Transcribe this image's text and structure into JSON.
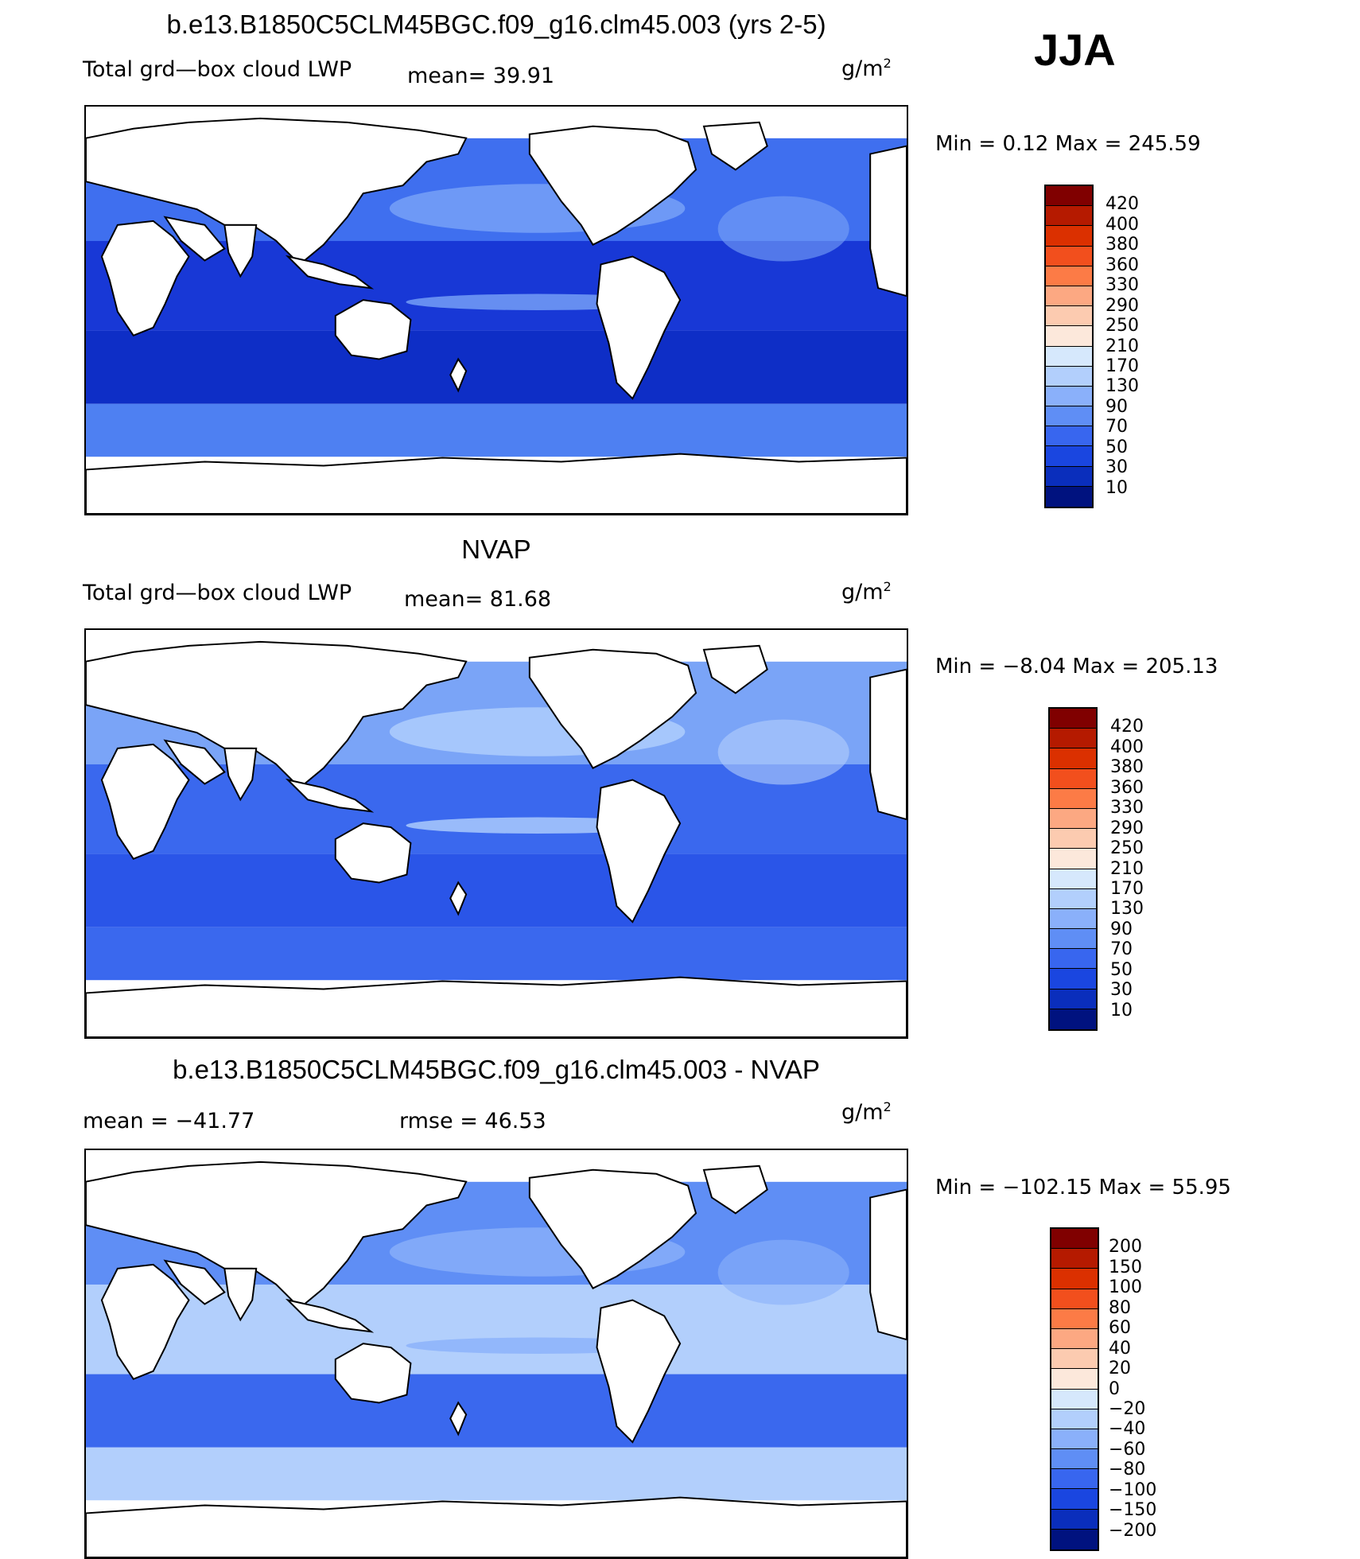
{
  "season": "JJA",
  "panels": [
    {
      "title": "b.e13.B1850C5CLM45BGC.f09_g16.clm45.003 (yrs 2-5)",
      "left_label": "Total grd—box cloud LWP",
      "mean_text": "mean=   39.91",
      "units_base": "g/m",
      "units_exp": "2",
      "stats": "Min =     0.12  Max  =  245.59",
      "colorbar": {
        "labels": [
          "420",
          "400",
          "380",
          "360",
          "330",
          "290",
          "250",
          "210",
          "170",
          "130",
          "90",
          "70",
          "50",
          "30",
          "10"
        ],
        "colors": [
          "#800000",
          "#b51a00",
          "#db3000",
          "#f24f1d",
          "#fc7b46",
          "#fca882",
          "#fccbb0",
          "#fce8db",
          "#d6e8fc",
          "#b2cffc",
          "#8ab0fa",
          "#5f8ef5",
          "#3866ef",
          "#1a46e0",
          "#0a2ebc",
          "#00127f"
        ]
      },
      "map_fill": {
        "north": "#3f6fef",
        "tropic": "#1838d6",
        "south_pac": "#0e2ec6",
        "southern_belt": "#4e80f2",
        "stripe": "#7aa4f7"
      }
    },
    {
      "title": "NVAP",
      "left_label": "Total grd—box cloud LWP",
      "mean_text": "mean=   81.68",
      "units_base": "g/m",
      "units_exp": "2",
      "stats": "Min =   −8.04  Max  =  205.13",
      "colorbar": {
        "labels": [
          "420",
          "400",
          "380",
          "360",
          "330",
          "290",
          "250",
          "210",
          "170",
          "130",
          "90",
          "70",
          "50",
          "30",
          "10"
        ],
        "colors": [
          "#800000",
          "#b51a00",
          "#db3000",
          "#f24f1d",
          "#fc7b46",
          "#fca882",
          "#fccbb0",
          "#fce8db",
          "#d6e8fc",
          "#b2cffc",
          "#8ab0fa",
          "#5f8ef5",
          "#3866ef",
          "#1a46e0",
          "#0a2ebc",
          "#00127f"
        ]
      },
      "map_fill": {
        "north": "#7aa4f7",
        "tropic": "#3a68ee",
        "south_pac": "#2a55e8",
        "southern_belt": "#3a68ee",
        "stripe": "#b2cffc"
      }
    },
    {
      "title": "b.e13.B1850C5CLM45BGC.f09_g16.clm45.003 - NVAP",
      "mean_text": "mean  =  −41.77",
      "rmse_text": "rmse  =    46.53",
      "units_base": "g/m",
      "units_exp": "2",
      "stats": "Min  =  −102.15  Max  =     55.95",
      "colorbar": {
        "labels": [
          "200",
          "150",
          "100",
          "80",
          "60",
          "40",
          "20",
          "0",
          "−20",
          "−40",
          "−60",
          "−80",
          "−100",
          "−150",
          "−200"
        ],
        "colors": [
          "#800000",
          "#b51a00",
          "#db3000",
          "#f24f1d",
          "#fc7b46",
          "#fca882",
          "#fccbb0",
          "#fce8db",
          "#d6e8fc",
          "#b2cffc",
          "#8ab0fa",
          "#5f8ef5",
          "#3866ef",
          "#1a46e0",
          "#0a2ebc",
          "#00127f"
        ]
      },
      "map_fill": {
        "north": "#5f8ef5",
        "tropic": "#b2cffc",
        "south_pac": "#3a68ee",
        "southern_belt": "#b2cffc",
        "stripe": "#8ab0fa"
      }
    }
  ]
}
